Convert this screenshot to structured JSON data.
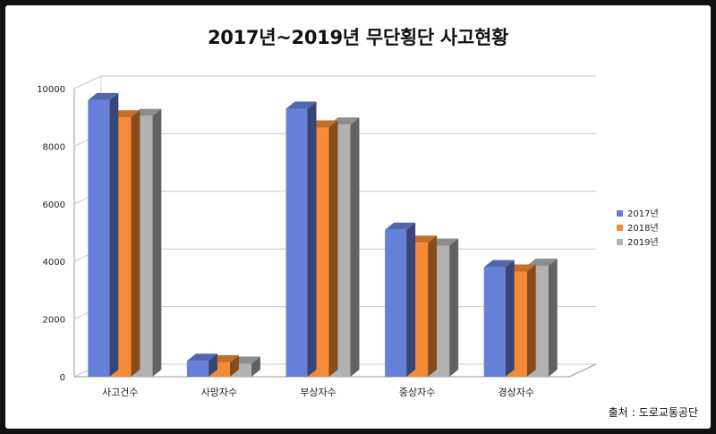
{
  "chart_data": {
    "type": "bar",
    "title": "2017년~2019년 무단횡단 사고현황",
    "categories": [
      "사고건수",
      "사망자수",
      "부상자수",
      "중상자수",
      "경상자수"
    ],
    "series": [
      {
        "name": "2017년",
        "values": [
          9600,
          550,
          9300,
          5100,
          3800
        ],
        "color": "#6680d9"
      },
      {
        "name": "2018년",
        "values": [
          9000,
          500,
          8650,
          4650,
          3650
        ],
        "color": "#f68a36"
      },
      {
        "name": "2019년",
        "values": [
          9050,
          450,
          8750,
          4550,
          3850
        ],
        "color": "#b2b2b2"
      }
    ],
    "ylim": [
      0,
      10000
    ],
    "yticks": [
      "0",
      "2000",
      "4000",
      "6000",
      "8000",
      "10000"
    ],
    "grid": true,
    "legend": "right"
  },
  "source": {
    "label": "출처",
    "separator": ":",
    "text": "도로교통공단"
  }
}
